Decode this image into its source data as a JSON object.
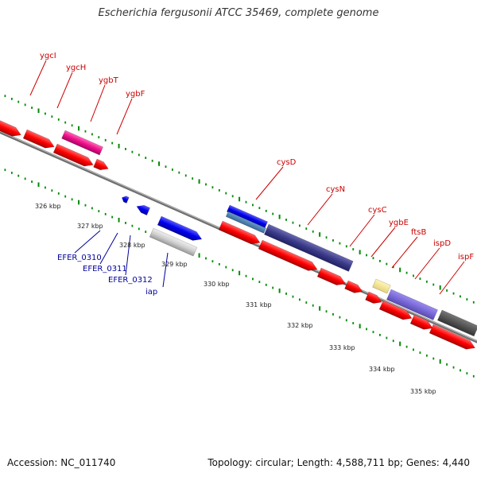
{
  "title": "Escherichia fergusonii ATCC 35469, complete genome",
  "footer": {
    "accession": "Accession: NC_011740",
    "summary": "Topology: circular; Length: 4,588,711 bp; Genes: 4,440"
  },
  "colors": {
    "cds": "#ff0000",
    "gene_label": "#cc0000",
    "locus_label": "#000099",
    "tick": "#008000",
    "backbone": "#888888"
  },
  "genes_top": [
    "ygcI",
    "ygcH",
    "ygbT",
    "ygbF",
    "cysD",
    "cysN",
    "cysC",
    "ygbE",
    "ftsB",
    "ispD",
    "ispF"
  ],
  "genes_bottom": [
    "EFER_0310",
    "EFER_0311",
    "EFER_0312",
    "iap"
  ],
  "scale_labels": [
    "326 kbp",
    "327 kbp",
    "328 kbp",
    "329 kbp",
    "330 kbp",
    "331 kbp",
    "332 kbp",
    "333 kbp",
    "334 kbp",
    "335 kbp"
  ]
}
